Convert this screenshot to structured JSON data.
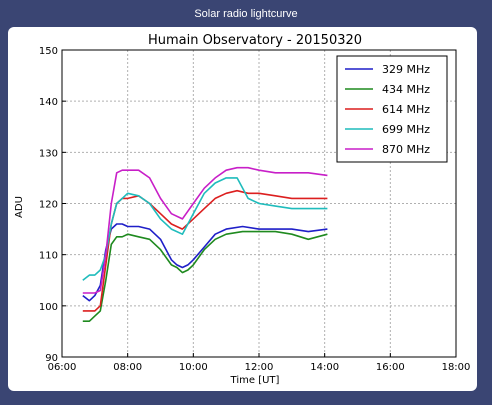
{
  "window": {
    "title": "Solar radio lightcurve"
  },
  "colors": {
    "background": "#3a4573",
    "panel": "#ffffff",
    "grid": "#b0b0b0"
  },
  "chart_data": {
    "type": "line",
    "title": "Humain Observatory - 20150320",
    "xlabel": "Time [UT]",
    "ylabel": "ADU",
    "xlim": [
      "06:00",
      "18:00"
    ],
    "ylim": [
      90,
      150
    ],
    "x_ticks": [
      "06:00",
      "08:00",
      "10:00",
      "12:00",
      "14:00",
      "16:00",
      "18:00"
    ],
    "y_ticks": [
      "90",
      "100",
      "110",
      "120",
      "130",
      "140",
      "150"
    ],
    "grid": true,
    "legend_position": "top-right",
    "series": [
      {
        "name": "329 MHz",
        "color": "#1f1fc8",
        "x": [
          "06:38",
          "06:50",
          "07:00",
          "07:10",
          "07:20",
          "07:30",
          "07:40",
          "07:50",
          "08:00",
          "08:20",
          "08:40",
          "09:00",
          "09:20",
          "09:30",
          "09:40",
          "09:50",
          "10:00",
          "10:20",
          "10:40",
          "11:00",
          "11:30",
          "12:00",
          "12:30",
          "13:00",
          "13:30",
          "14:05"
        ],
        "y": [
          102,
          101,
          102,
          104,
          111,
          115,
          116,
          116,
          115.5,
          115.5,
          115,
          113,
          109,
          108,
          107.5,
          108,
          109,
          111.5,
          114,
          115,
          115.5,
          115,
          115,
          115,
          114.5,
          115
        ]
      },
      {
        "name": "434 MHz",
        "color": "#1f8a1f",
        "x": [
          "06:38",
          "06:50",
          "07:00",
          "07:10",
          "07:20",
          "07:30",
          "07:40",
          "07:50",
          "08:00",
          "08:20",
          "08:40",
          "09:00",
          "09:20",
          "09:30",
          "09:40",
          "09:50",
          "10:00",
          "10:20",
          "10:40",
          "11:00",
          "11:30",
          "12:00",
          "12:30",
          "13:00",
          "13:30",
          "14:05"
        ],
        "y": [
          97,
          97,
          98,
          99,
          105,
          112,
          113.5,
          113.5,
          114,
          113.5,
          113,
          111,
          108,
          107.5,
          106.5,
          107,
          108,
          111,
          113,
          114,
          114.5,
          114.5,
          114.5,
          114,
          113,
          114
        ]
      },
      {
        "name": "614 MHz",
        "color": "#dc1f1f",
        "x": [
          "06:38",
          "06:50",
          "07:00",
          "07:10",
          "07:20",
          "07:30",
          "07:40",
          "07:50",
          "08:00",
          "08:20",
          "08:40",
          "09:00",
          "09:20",
          "09:40",
          "10:00",
          "10:20",
          "10:40",
          "11:00",
          "11:20",
          "11:40",
          "12:00",
          "12:30",
          "13:00",
          "13:30",
          "14:05"
        ],
        "y": [
          99,
          99,
          99,
          100,
          108,
          116,
          120,
          121,
          121,
          121.5,
          120,
          118,
          116,
          115,
          117,
          119,
          121,
          122,
          122.5,
          122,
          122,
          121.5,
          121,
          121,
          121
        ]
      },
      {
        "name": "699 MHz",
        "color": "#1fbcbc",
        "x": [
          "06:38",
          "06:50",
          "07:00",
          "07:10",
          "07:20",
          "07:30",
          "07:40",
          "07:50",
          "08:00",
          "08:20",
          "08:40",
          "09:00",
          "09:20",
          "09:40",
          "10:00",
          "10:20",
          "10:40",
          "11:00",
          "11:20",
          "11:40",
          "12:00",
          "12:30",
          "13:00",
          "13:30",
          "14:05"
        ],
        "y": [
          105,
          106,
          106,
          107,
          110,
          116,
          120,
          121,
          122,
          121.5,
          120,
          117,
          115,
          114,
          118,
          122,
          124,
          125,
          125,
          121,
          120,
          119.5,
          119,
          119,
          119
        ]
      },
      {
        "name": "870 MHz",
        "color": "#c81fc8",
        "x": [
          "06:38",
          "06:50",
          "07:00",
          "07:10",
          "07:20",
          "07:30",
          "07:40",
          "07:50",
          "08:00",
          "08:20",
          "08:40",
          "09:00",
          "09:20",
          "09:40",
          "10:00",
          "10:20",
          "10:40",
          "11:00",
          "11:20",
          "11:40",
          "12:00",
          "12:30",
          "13:00",
          "13:30",
          "14:05"
        ],
        "y": [
          102.5,
          102.5,
          102.5,
          103,
          110,
          120,
          126,
          126.5,
          126.5,
          126.5,
          125,
          121,
          118,
          117,
          120,
          123,
          125,
          126.5,
          127,
          127,
          126.5,
          126,
          126,
          126,
          125.5
        ]
      }
    ]
  }
}
